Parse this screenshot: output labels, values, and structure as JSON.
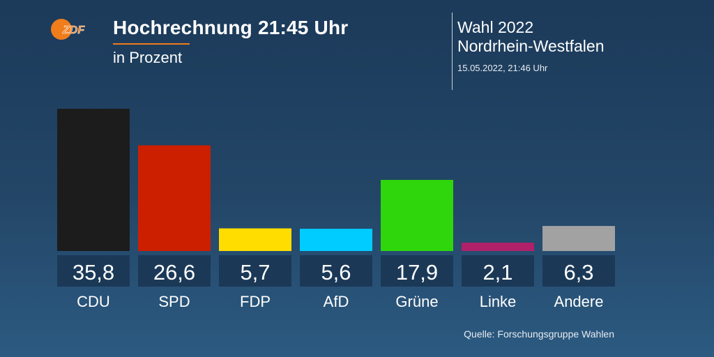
{
  "header": {
    "logo_text": "ZDF",
    "title": "Hochrechnung 21:45 Uhr",
    "subtitle": "in Prozent",
    "election_line1": "Wahl 2022",
    "election_line2": "Nordrhein-Westfalen",
    "timestamp": "15.05.2022, 21:46 Uhr"
  },
  "colors": {
    "accent": "#f07d1b",
    "value_box": "#1b3957"
  },
  "chart_data": {
    "type": "bar",
    "categories": [
      "CDU",
      "SPD",
      "FDP",
      "AfD",
      "Grüne",
      "Linke",
      "Andere"
    ],
    "values": [
      35.8,
      26.6,
      5.7,
      5.6,
      17.9,
      2.1,
      6.3
    ],
    "value_labels": [
      "35,8",
      "26,6",
      "5,7",
      "5,6",
      "17,9",
      "2,1",
      "6,3"
    ],
    "colors": [
      "#1c1c1c",
      "#cc1f00",
      "#ffdd00",
      "#00ccff",
      "#2ed60b",
      "#b02169",
      "#a2a2a2"
    ],
    "title": "Hochrechnung 21:45 Uhr",
    "subtitle": "in Prozent",
    "ylim": [
      0,
      35.8
    ],
    "grid": false,
    "legend": "none"
  },
  "footer": {
    "source": "Quelle: Forschungsgruppe Wahlen"
  }
}
